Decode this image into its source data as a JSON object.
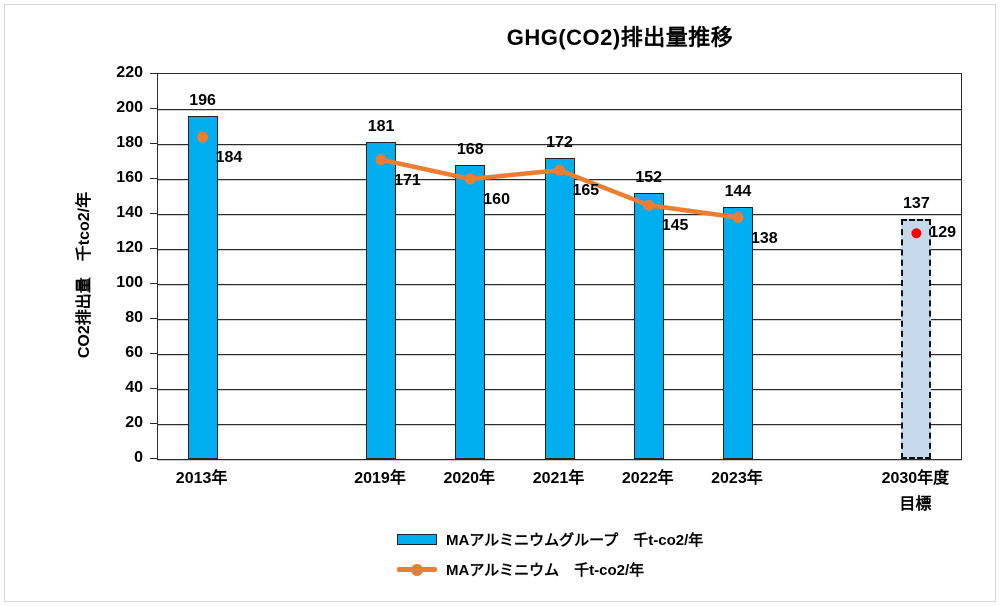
{
  "chart_data": {
    "type": "bar+line",
    "title": "GHG(CO2)排出量推移",
    "ylabel": "CO2排出量　千tco2/年",
    "xlabel": "",
    "ylim": [
      0,
      220
    ],
    "ytick_step": 20,
    "grid": true,
    "legend_position": "bottom",
    "slots_total": 9,
    "categories": [
      "2013年",
      "2019年",
      "2020年",
      "2021年",
      "2022年",
      "2023年",
      "2030年度"
    ],
    "category_sublabels": [
      "",
      "",
      "",
      "",
      "",
      "",
      "目標"
    ],
    "category_slots": [
      0,
      2,
      3,
      4,
      5,
      6,
      8
    ],
    "series": [
      {
        "name": "MAアルミニウムグループ　千t-co2/年",
        "type": "bar",
        "values": [
          196,
          181,
          168,
          172,
          152,
          144,
          137
        ],
        "bar_styles": [
          "solid",
          "solid",
          "solid",
          "solid",
          "solid",
          "solid",
          "target-dashed"
        ]
      },
      {
        "name": "MAアルミニウム　千t-co2/年",
        "type": "line",
        "values": [
          184,
          171,
          160,
          165,
          145,
          138,
          129
        ],
        "connected_from_index": 1,
        "connected_to_index": 5,
        "point_colors": [
          "orange",
          "orange",
          "orange",
          "orange",
          "orange",
          "orange",
          "red"
        ]
      }
    ]
  },
  "colors": {
    "bar_fill": "#00AEF0",
    "bar_border": "#222222",
    "target_fill": "#C5D8EC",
    "target_border": "#111111",
    "line": "#ED7D31",
    "red_point": "#FF0000",
    "grid": "#2b2b2b",
    "frame": "#D7D7D7",
    "text": "#000000"
  }
}
